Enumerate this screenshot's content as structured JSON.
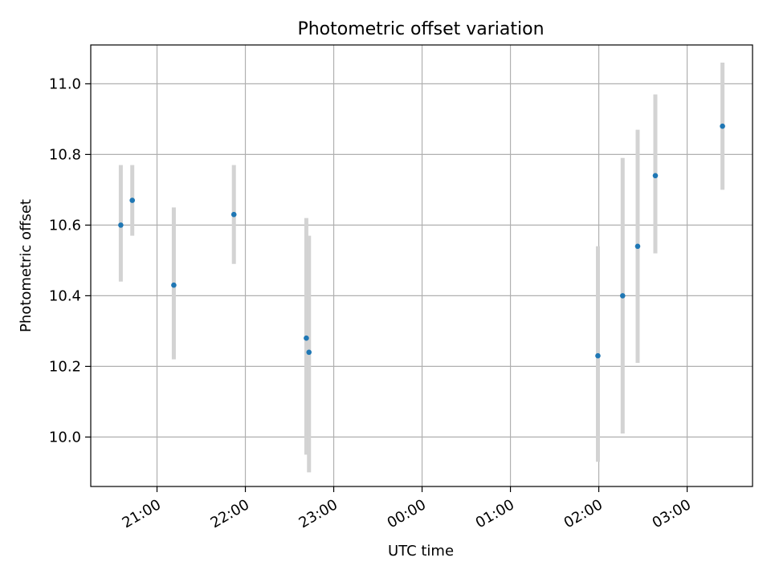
{
  "chart_data": {
    "type": "scatter",
    "title": "Photometric offset variation",
    "xlabel": "UTC time",
    "ylabel": "Photometric offset",
    "x_unit": "hours UTC (times after midnight shown > 24)",
    "xlim": [
      20.25,
      27.74
    ],
    "ylim": [
      9.86,
      11.11
    ],
    "x_ticks": [
      {
        "value": 21,
        "label": "21:00"
      },
      {
        "value": 22,
        "label": "22:00"
      },
      {
        "value": 23,
        "label": "23:00"
      },
      {
        "value": 24,
        "label": "00:00"
      },
      {
        "value": 25,
        "label": "01:00"
      },
      {
        "value": 26,
        "label": "02:00"
      },
      {
        "value": 27,
        "label": "03:00"
      }
    ],
    "y_ticks": [
      {
        "value": 10.0,
        "label": "10.0"
      },
      {
        "value": 10.2,
        "label": "10.2"
      },
      {
        "value": 10.4,
        "label": "10.4"
      },
      {
        "value": 10.6,
        "label": "10.6"
      },
      {
        "value": 10.8,
        "label": "10.8"
      },
      {
        "value": 11.0,
        "label": "11.0"
      }
    ],
    "grid": true,
    "colors": {
      "marker": "#1f77b4",
      "errorbar": "#d3d3d3",
      "grid": "#b0b0b0"
    },
    "series": [
      {
        "points": [
          {
            "time": "20:35",
            "x": 20.59,
            "y": 10.6,
            "ylow": 10.44,
            "yhigh": 10.77
          },
          {
            "time": "20:43",
            "x": 20.72,
            "y": 10.67,
            "ylow": 10.57,
            "yhigh": 10.77
          },
          {
            "time": "21:11",
            "x": 21.19,
            "y": 10.43,
            "ylow": 10.22,
            "yhigh": 10.65
          },
          {
            "time": "21:52",
            "x": 21.87,
            "y": 10.63,
            "ylow": 10.49,
            "yhigh": 10.77
          },
          {
            "time": "22:41",
            "x": 22.69,
            "y": 10.28,
            "ylow": 9.95,
            "yhigh": 10.62
          },
          {
            "time": "22:43",
            "x": 22.72,
            "y": 10.24,
            "ylow": 9.9,
            "yhigh": 10.57
          },
          {
            "time": "01:59",
            "x": 25.99,
            "y": 10.23,
            "ylow": 9.93,
            "yhigh": 10.54
          },
          {
            "time": "02:16",
            "x": 26.27,
            "y": 10.4,
            "ylow": 10.01,
            "yhigh": 10.79
          },
          {
            "time": "02:26",
            "x": 26.44,
            "y": 10.54,
            "ylow": 10.21,
            "yhigh": 10.87
          },
          {
            "time": "02:38",
            "x": 26.64,
            "y": 10.74,
            "ylow": 10.52,
            "yhigh": 10.97
          },
          {
            "time": "03:24",
            "x": 27.4,
            "y": 10.88,
            "ylow": 10.7,
            "yhigh": 11.06
          }
        ]
      }
    ]
  }
}
